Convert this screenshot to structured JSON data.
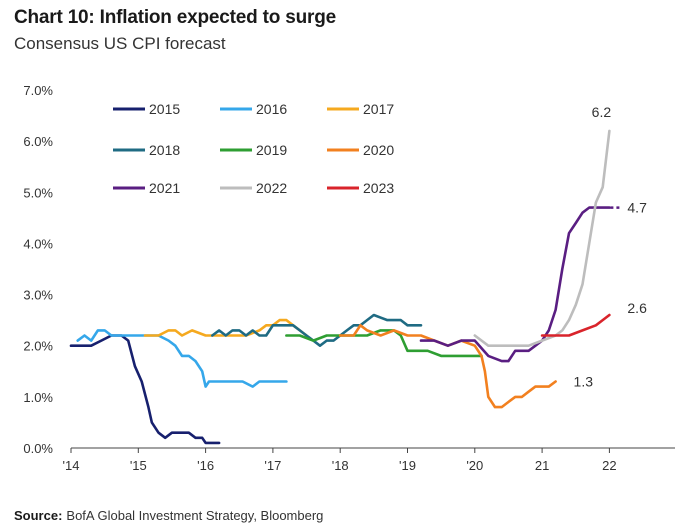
{
  "header": {
    "title": "Chart 10: Inflation expected to surge",
    "subtitle": "Consensus US CPI forecast"
  },
  "footer": {
    "source_label": "Source:",
    "source_text": "BofA Global Investment Strategy, Bloomberg"
  },
  "chart_data": {
    "type": "line",
    "title": "Chart 10: Inflation expected to surge",
    "subtitle": "Consensus US CPI forecast",
    "xlabel": "",
    "ylabel": "",
    "x_unit": "year",
    "xlim": [
      2014.0,
      2023.0
    ],
    "ylim": [
      0.0,
      7.0
    ],
    "x_ticks": [
      {
        "value": 2014,
        "label": "'14"
      },
      {
        "value": 2015,
        "label": "'15"
      },
      {
        "value": 2016,
        "label": "'16"
      },
      {
        "value": 2017,
        "label": "'17"
      },
      {
        "value": 2018,
        "label": "'18"
      },
      {
        "value": 2019,
        "label": "'19"
      },
      {
        "value": 2020,
        "label": "'20"
      },
      {
        "value": 2021,
        "label": "21"
      },
      {
        "value": 2022,
        "label": "22"
      }
    ],
    "y_ticks": [
      {
        "value": 0,
        "label": "0.0%"
      },
      {
        "value": 1,
        "label": "1.0%"
      },
      {
        "value": 2,
        "label": "2.0%"
      },
      {
        "value": 3,
        "label": "3.0%"
      },
      {
        "value": 4,
        "label": "4.0%"
      },
      {
        "value": 5,
        "label": "5.0%"
      },
      {
        "value": 6,
        "label": "6.0%"
      },
      {
        "value": 7,
        "label": "7.0%"
      }
    ],
    "grid": false,
    "legend": "top-left",
    "series": [
      {
        "name": "2015",
        "color": "#17206e",
        "x": [
          2014.0,
          2014.3,
          2014.45,
          2014.6,
          2014.75,
          2014.85,
          2014.95,
          2015.05,
          2015.15,
          2015.2,
          2015.3,
          2015.4,
          2015.5,
          2015.6,
          2015.75,
          2015.85,
          2015.95,
          2016.0,
          2016.1,
          2016.2
        ],
        "y": [
          2.0,
          2.0,
          2.1,
          2.2,
          2.2,
          2.1,
          1.6,
          1.3,
          0.8,
          0.5,
          0.3,
          0.2,
          0.3,
          0.3,
          0.3,
          0.2,
          0.2,
          0.1,
          0.1,
          0.1
        ]
      },
      {
        "name": "2016",
        "color": "#35a7ea",
        "x": [
          2014.1,
          2014.2,
          2014.3,
          2014.4,
          2014.5,
          2014.6,
          2015.0,
          2015.3,
          2015.45,
          2015.55,
          2015.65,
          2015.75,
          2015.85,
          2015.95,
          2016.0,
          2016.05,
          2016.1,
          2016.25,
          2016.4,
          2016.55,
          2016.7,
          2016.8,
          2016.9,
          2017.0,
          2017.1,
          2017.2
        ],
        "y": [
          2.1,
          2.2,
          2.1,
          2.3,
          2.3,
          2.2,
          2.2,
          2.2,
          2.1,
          2.0,
          1.8,
          1.8,
          1.7,
          1.5,
          1.2,
          1.3,
          1.3,
          1.3,
          1.3,
          1.3,
          1.2,
          1.3,
          1.3,
          1.3,
          1.3,
          1.3
        ]
      },
      {
        "name": "2017",
        "color": "#f5a91f",
        "x": [
          2015.1,
          2015.3,
          2015.45,
          2015.55,
          2015.65,
          2015.8,
          2016.0,
          2016.2,
          2016.4,
          2016.6,
          2016.8,
          2016.9,
          2017.0,
          2017.1,
          2017.2,
          2017.3,
          2017.4,
          2017.5
        ],
        "y": [
          2.2,
          2.2,
          2.3,
          2.3,
          2.2,
          2.3,
          2.2,
          2.2,
          2.2,
          2.2,
          2.3,
          2.4,
          2.4,
          2.5,
          2.5,
          2.4,
          2.3,
          2.2
        ]
      },
      {
        "name": "2018",
        "color": "#1f6b83",
        "x": [
          2016.1,
          2016.2,
          2016.3,
          2016.4,
          2016.5,
          2016.6,
          2016.7,
          2016.8,
          2016.9,
          2017.0,
          2017.2,
          2017.3,
          2017.4,
          2017.5,
          2017.6,
          2017.7,
          2017.8,
          2017.9,
          2018.0,
          2018.1,
          2018.2,
          2018.3,
          2018.4,
          2018.5,
          2018.7,
          2018.9,
          2019.0,
          2019.1,
          2019.2
        ],
        "y": [
          2.2,
          2.3,
          2.2,
          2.3,
          2.3,
          2.2,
          2.3,
          2.2,
          2.2,
          2.4,
          2.4,
          2.4,
          2.3,
          2.2,
          2.1,
          2.0,
          2.1,
          2.1,
          2.2,
          2.3,
          2.4,
          2.4,
          2.5,
          2.6,
          2.5,
          2.5,
          2.4,
          2.4,
          2.4
        ]
      },
      {
        "name": "2019",
        "color": "#2e9e32",
        "x": [
          2017.2,
          2017.4,
          2017.6,
          2017.8,
          2018.0,
          2018.2,
          2018.4,
          2018.6,
          2018.8,
          2018.9,
          2019.0,
          2019.1,
          2019.3,
          2019.5,
          2019.7,
          2019.9,
          2020.0,
          2020.1
        ],
        "y": [
          2.2,
          2.2,
          2.1,
          2.2,
          2.2,
          2.2,
          2.2,
          2.3,
          2.3,
          2.2,
          1.9,
          1.9,
          1.9,
          1.8,
          1.8,
          1.8,
          1.8,
          1.8
        ]
      },
      {
        "name": "2020",
        "color": "#f2801f",
        "x": [
          2018.0,
          2018.2,
          2018.3,
          2018.4,
          2018.6,
          2018.8,
          2019.0,
          2019.2,
          2019.4,
          2019.6,
          2019.8,
          2020.0,
          2020.1,
          2020.15,
          2020.2,
          2020.3,
          2020.4,
          2020.5,
          2020.6,
          2020.7,
          2020.8,
          2020.9,
          2021.0,
          2021.1,
          2021.2
        ],
        "y": [
          2.2,
          2.2,
          2.4,
          2.3,
          2.2,
          2.3,
          2.2,
          2.2,
          2.1,
          2.0,
          2.1,
          2.0,
          1.8,
          1.5,
          1.0,
          0.8,
          0.8,
          0.9,
          1.0,
          1.0,
          1.1,
          1.2,
          1.2,
          1.2,
          1.3
        ]
      },
      {
        "name": "2021",
        "color": "#5a1e82",
        "x": [
          2019.2,
          2019.4,
          2019.6,
          2019.8,
          2020.0,
          2020.2,
          2020.4,
          2020.5,
          2020.6,
          2020.8,
          2020.9,
          2021.0,
          2021.1,
          2021.2,
          2021.3,
          2021.4,
          2021.5,
          2021.6,
          2021.7,
          2021.8,
          2021.9,
          2022.0
        ],
        "y": [
          2.1,
          2.1,
          2.0,
          2.1,
          2.1,
          1.8,
          1.7,
          1.7,
          1.9,
          1.9,
          2.0,
          2.1,
          2.3,
          2.7,
          3.5,
          4.2,
          4.4,
          4.6,
          4.7,
          4.7,
          4.7,
          4.7
        ]
      },
      {
        "name": "2022",
        "color": "#bdbdbd",
        "x": [
          2020.0,
          2020.2,
          2020.4,
          2020.6,
          2020.8,
          2021.0,
          2021.2,
          2021.3,
          2021.4,
          2021.5,
          2021.6,
          2021.7,
          2021.8,
          2021.9,
          2022.0
        ],
        "y": [
          2.2,
          2.0,
          2.0,
          2.0,
          2.0,
          2.1,
          2.2,
          2.3,
          2.5,
          2.8,
          3.2,
          4.0,
          4.8,
          5.1,
          6.2
        ]
      },
      {
        "name": "2023",
        "color": "#d9242b",
        "x": [
          2021.0,
          2021.2,
          2021.4,
          2021.6,
          2021.8,
          2021.9,
          2022.0
        ],
        "y": [
          2.2,
          2.2,
          2.2,
          2.3,
          2.4,
          2.5,
          2.6
        ]
      }
    ],
    "annotations": [
      {
        "text": "6.2",
        "x": 2022.0,
        "y": 6.2,
        "series": "2022"
      },
      {
        "text": "4.7",
        "x": 2022.0,
        "y": 4.7,
        "series": "2021"
      },
      {
        "text": "2.6",
        "x": 2022.0,
        "y": 2.6,
        "series": "2023"
      },
      {
        "text": "1.3",
        "x": 2021.2,
        "y": 1.3,
        "series": "2020"
      }
    ]
  }
}
